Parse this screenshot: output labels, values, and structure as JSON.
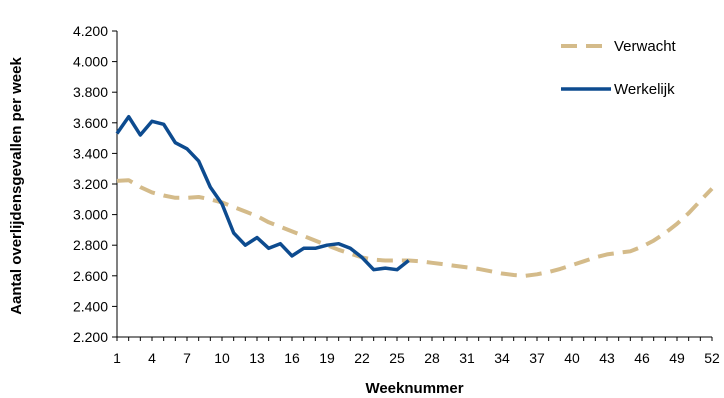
{
  "chart_data": {
    "type": "line",
    "title": "",
    "xlabel": "Weeknummer",
    "ylabel": "Aantal overlijdensgevallen per week",
    "xlim": [
      1,
      52
    ],
    "ylim": [
      2200,
      4200
    ],
    "x_ticks": [
      1,
      4,
      7,
      10,
      13,
      16,
      19,
      22,
      25,
      28,
      31,
      34,
      37,
      40,
      43,
      46,
      49,
      52
    ],
    "x_tick_labels": [
      "1",
      "4",
      "7",
      "10",
      "13",
      "16",
      "19",
      "22",
      "25",
      "28",
      "31",
      "34",
      "37",
      "40",
      "43",
      "46",
      "49",
      "52"
    ],
    "y_ticks": [
      2200,
      2400,
      2600,
      2800,
      3000,
      3200,
      3400,
      3600,
      3800,
      4000,
      4200
    ],
    "y_tick_labels": [
      "2.200",
      "2.400",
      "2.600",
      "2.800",
      "3.000",
      "3.200",
      "3.400",
      "3.600",
      "3.800",
      "4.000",
      "4.200"
    ],
    "grid": false,
    "legend_position": "top-right",
    "series": [
      {
        "name": "Verwacht",
        "color": "#d4bb8a",
        "style": "dashed",
        "x": [
          1,
          2,
          3,
          4,
          5,
          6,
          7,
          8,
          9,
          10,
          11,
          12,
          13,
          14,
          15,
          16,
          17,
          18,
          19,
          20,
          21,
          22,
          23,
          24,
          25,
          26,
          27,
          28,
          29,
          30,
          31,
          32,
          33,
          34,
          35,
          36,
          37,
          38,
          39,
          40,
          41,
          42,
          43,
          44,
          45,
          46,
          47,
          48,
          49,
          50,
          51,
          52
        ],
        "values": [
          3220,
          3225,
          3180,
          3145,
          3125,
          3110,
          3110,
          3115,
          3100,
          3080,
          3050,
          3020,
          2990,
          2950,
          2920,
          2890,
          2860,
          2830,
          2800,
          2770,
          2745,
          2720,
          2705,
          2700,
          2700,
          2700,
          2695,
          2685,
          2675,
          2665,
          2655,
          2645,
          2630,
          2615,
          2605,
          2600,
          2610,
          2625,
          2645,
          2670,
          2695,
          2720,
          2740,
          2750,
          2760,
          2790,
          2830,
          2880,
          2940,
          3010,
          3090,
          3170
        ]
      },
      {
        "name": "Werkelijk",
        "color": "#0d4b8f",
        "style": "solid",
        "x": [
          1,
          2,
          3,
          4,
          5,
          6,
          7,
          8,
          9,
          10,
          11,
          12,
          13,
          14,
          15,
          16,
          17,
          18,
          19,
          20,
          21,
          22,
          23,
          24,
          25,
          26
        ],
        "values": [
          3530,
          3640,
          3520,
          3610,
          3590,
          3470,
          3430,
          3350,
          3180,
          3070,
          2880,
          2800,
          2850,
          2780,
          2810,
          2730,
          2780,
          2780,
          2800,
          2810,
          2780,
          2720,
          2640,
          2650,
          2640,
          2700
        ]
      }
    ]
  }
}
